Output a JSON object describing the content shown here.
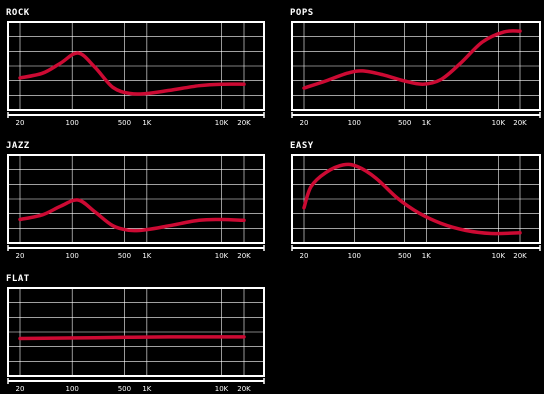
{
  "colors": {
    "background": "#000000",
    "grid": "#ffffff",
    "curve": "#cc0a33"
  },
  "frequency_labels": [
    "20",
    "100",
    "500",
    "1K",
    "10K",
    "20K"
  ],
  "frequency_values": [
    20,
    100,
    500,
    1000,
    10000,
    20000
  ],
  "presets": [
    {
      "title": "ROCK",
      "curve": [
        [
          20,
          0.36
        ],
        [
          40,
          0.42
        ],
        [
          70,
          0.55
        ],
        [
          120,
          0.68
        ],
        [
          200,
          0.5
        ],
        [
          350,
          0.24
        ],
        [
          600,
          0.16
        ],
        [
          1000,
          0.16
        ],
        [
          2000,
          0.2
        ],
        [
          5000,
          0.26
        ],
        [
          10000,
          0.28
        ],
        [
          20000,
          0.28
        ]
      ]
    },
    {
      "title": "POPS",
      "curve": [
        [
          20,
          0.23
        ],
        [
          40,
          0.32
        ],
        [
          80,
          0.42
        ],
        [
          130,
          0.45
        ],
        [
          250,
          0.4
        ],
        [
          500,
          0.32
        ],
        [
          900,
          0.28
        ],
        [
          1600,
          0.34
        ],
        [
          3000,
          0.55
        ],
        [
          6000,
          0.82
        ],
        [
          12000,
          0.95
        ],
        [
          20000,
          0.96
        ]
      ]
    },
    {
      "title": "JAZZ",
      "curve": [
        [
          20,
          0.25
        ],
        [
          40,
          0.31
        ],
        [
          70,
          0.42
        ],
        [
          120,
          0.5
        ],
        [
          200,
          0.35
        ],
        [
          350,
          0.17
        ],
        [
          600,
          0.11
        ],
        [
          1000,
          0.12
        ],
        [
          2000,
          0.17
        ],
        [
          5000,
          0.24
        ],
        [
          10000,
          0.25
        ],
        [
          20000,
          0.24
        ]
      ]
    },
    {
      "title": "EASY",
      "curve": [
        [
          20,
          0.4
        ],
        [
          25,
          0.67
        ],
        [
          40,
          0.85
        ],
        [
          70,
          0.95
        ],
        [
          110,
          0.93
        ],
        [
          200,
          0.78
        ],
        [
          400,
          0.52
        ],
        [
          800,
          0.33
        ],
        [
          1600,
          0.2
        ],
        [
          3500,
          0.11
        ],
        [
          8000,
          0.07
        ],
        [
          20000,
          0.08
        ]
      ]
    },
    {
      "title": "FLAT",
      "curve": [
        [
          20,
          0.43
        ],
        [
          200,
          0.44
        ],
        [
          2000,
          0.45
        ],
        [
          20000,
          0.45
        ]
      ]
    }
  ]
}
